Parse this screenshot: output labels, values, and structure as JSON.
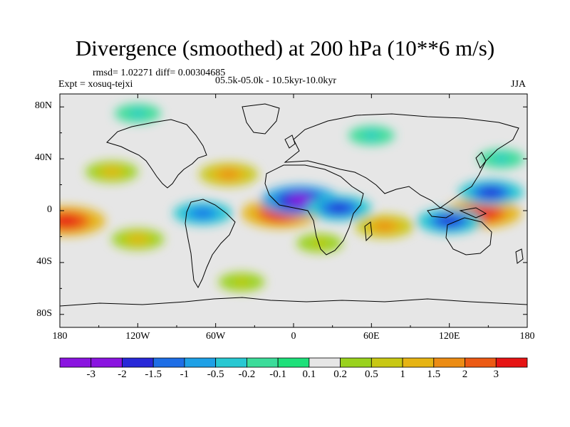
{
  "chart_data": {
    "type": "heatmap",
    "title": "Divergence (smoothed) at 200 hPa (10**6 m/s)",
    "stats": "rmsd= 1.02271 diff= 0.00304685",
    "experiment": "Expt = xosuq-tejxi",
    "period": "05.5k-05.0k - 10.5kyr-10.0kyr",
    "season": "JJA",
    "lon_range": [
      -180,
      180
    ],
    "lat_range": [
      -90,
      90
    ],
    "x_ticks": [
      "180",
      "120W",
      "60W",
      "0",
      "60E",
      "120E",
      "180"
    ],
    "y_ticks": [
      "80N",
      "40N",
      "0",
      "40S",
      "80S"
    ],
    "levels": [
      "-3",
      "-2",
      "-1.5",
      "-1",
      "-0.5",
      "-0.2",
      "-0.1",
      "0.1",
      "0.2",
      "0.5",
      "1",
      "1.5",
      "2",
      "3"
    ],
    "colors": [
      "#8a14e0",
      "#2828d8",
      "#1e6ee6",
      "#1ea0e6",
      "#28c8d2",
      "#3cdc9a",
      "#1ee07a",
      "#e6e6e6",
      "#9ad21e",
      "#c8c814",
      "#e6b414",
      "#ec8c14",
      "#ec5a14",
      "#e61414"
    ],
    "features": [
      {
        "name": "Equatorial Atlantic positive",
        "lon": -10,
        "lat": -2,
        "value": 3
      },
      {
        "name": "West Pacific positive",
        "lon": 145,
        "lat": -2,
        "value": 3
      },
      {
        "name": "East Pacific positive",
        "lon": -175,
        "lat": -8,
        "value": 3
      },
      {
        "name": "Gulf of Guinea negative",
        "lon": 5,
        "lat": 8,
        "value": -3
      },
      {
        "name": "East Africa negative",
        "lon": 35,
        "lat": 2,
        "value": -2
      },
      {
        "name": "Maritime continent negative",
        "lon": 120,
        "lat": -8,
        "value": -2
      },
      {
        "name": "Western Pacific negative",
        "lon": 152,
        "lat": 14,
        "value": -2
      },
      {
        "name": "South America negative",
        "lon": -70,
        "lat": -2,
        "value": -1.5
      },
      {
        "name": "North Pacific positive",
        "lon": -140,
        "lat": 30,
        "value": 1
      },
      {
        "name": "North Atlantic positive",
        "lon": -50,
        "lat": 28,
        "value": 1.5
      },
      {
        "name": "Indian Ocean positive",
        "lon": 70,
        "lat": -12,
        "value": 1.5
      },
      {
        "name": "South Pacific positive",
        "lon": -120,
        "lat": -22,
        "value": 1
      },
      {
        "name": "South Atlantic positive",
        "lon": 20,
        "lat": -25,
        "value": 0.5
      },
      {
        "name": "Eurasia negative",
        "lon": 60,
        "lat": 58,
        "value": -0.5
      },
      {
        "name": "North Pacific negative",
        "lon": 160,
        "lat": 40,
        "value": -0.5
      },
      {
        "name": "Southern Ocean positive",
        "lon": -40,
        "lat": -55,
        "value": 0.5
      },
      {
        "name": "Arctic negative",
        "lon": -120,
        "lat": 75,
        "value": -0.5
      }
    ]
  }
}
